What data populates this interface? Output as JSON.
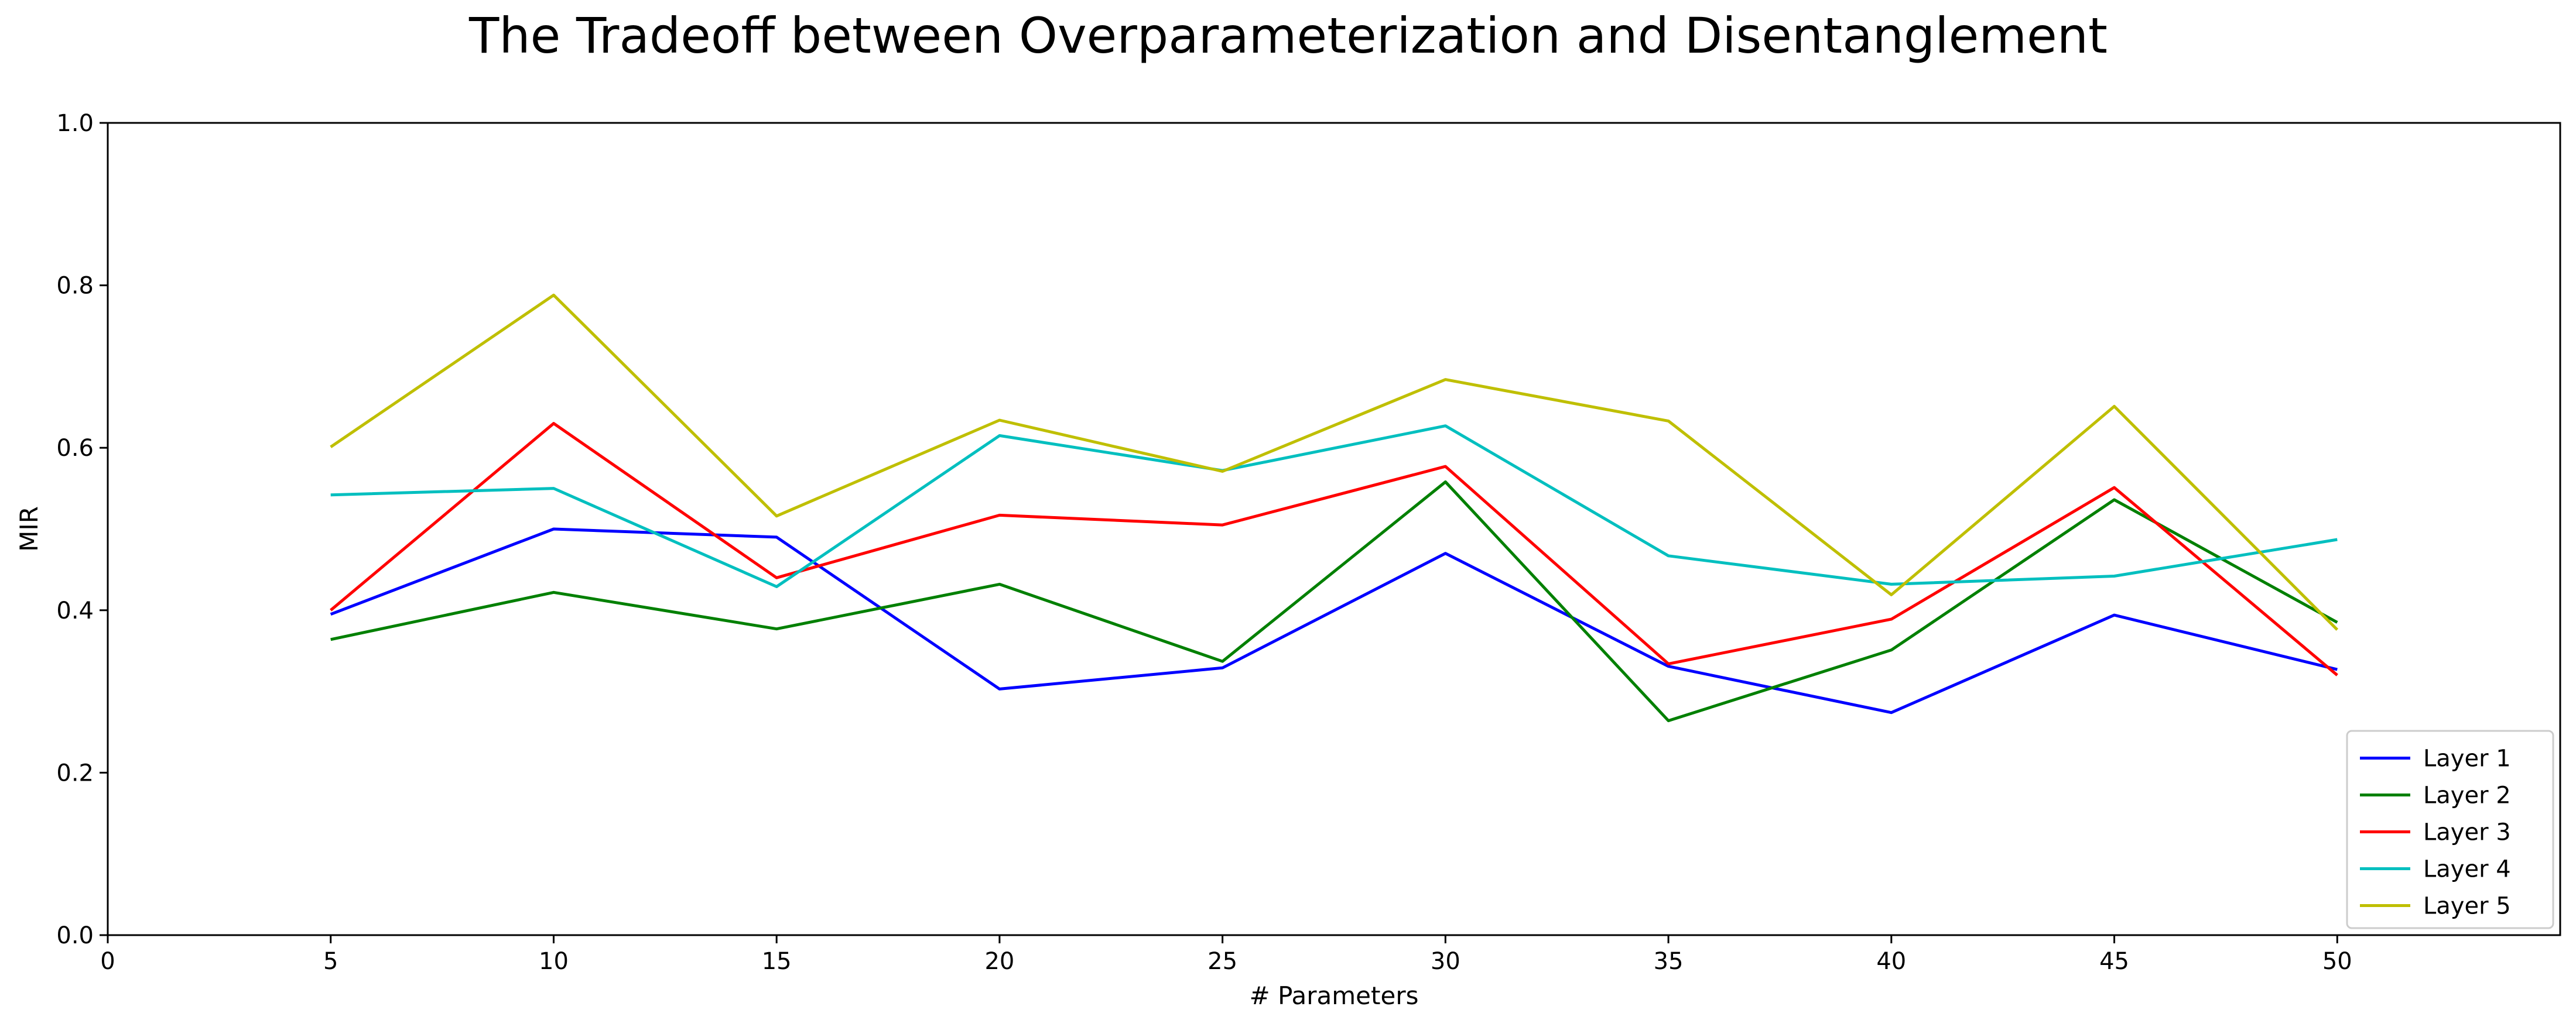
{
  "chart_data": {
    "type": "line",
    "title": "The Tradeoff between Overparameterization and Disentanglement",
    "xlabel": "# Parameters",
    "ylabel": "MIR",
    "xlim": [
      0,
      55
    ],
    "ylim": [
      0.0,
      1.0
    ],
    "xticks": [
      "0",
      "5",
      "10",
      "15",
      "20",
      "25",
      "30",
      "35",
      "40",
      "45",
      "50"
    ],
    "yticks": [
      "0.0",
      "0.2",
      "0.4",
      "0.6",
      "0.8",
      "1.0"
    ],
    "grid": false,
    "legend_position": "lower-right",
    "x": [
      5,
      10,
      15,
      20,
      25,
      30,
      35,
      40,
      45,
      50
    ],
    "series": [
      {
        "name": "Layer 1",
        "color": "#0000ff",
        "values": [
          0.395,
          0.5,
          0.49,
          0.303,
          0.329,
          0.47,
          0.331,
          0.274,
          0.394,
          0.327
        ]
      },
      {
        "name": "Layer 2",
        "color": "#008000",
        "values": [
          0.364,
          0.422,
          0.377,
          0.432,
          0.337,
          0.558,
          0.264,
          0.351,
          0.536,
          0.385
        ]
      },
      {
        "name": "Layer 3",
        "color": "#ff0000",
        "values": [
          0.4,
          0.63,
          0.44,
          0.517,
          0.505,
          0.577,
          0.334,
          0.389,
          0.551,
          0.32
        ]
      },
      {
        "name": "Layer 4",
        "color": "#00bfbf",
        "values": [
          0.542,
          0.55,
          0.429,
          0.615,
          0.572,
          0.627,
          0.467,
          0.432,
          0.442,
          0.487
        ]
      },
      {
        "name": "Layer 5",
        "color": "#bfbf00",
        "values": [
          0.601,
          0.788,
          0.516,
          0.634,
          0.571,
          0.684,
          0.633,
          0.419,
          0.651,
          0.376
        ]
      }
    ]
  }
}
